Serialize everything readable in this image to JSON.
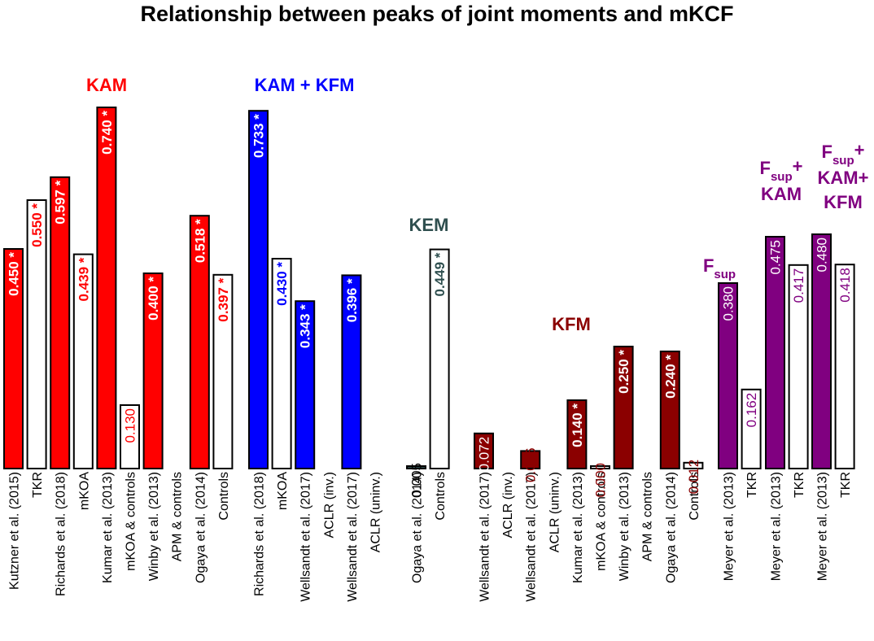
{
  "chart_data": {
    "type": "bar",
    "title": "Relationship between peaks of joint moments and mKCF",
    "ylim": [
      0,
      0.8
    ],
    "groups": [
      {
        "label": "KAM",
        "color": "#ff0000",
        "bars": [
          {
            "category": "Kutzner et al. (2015)",
            "value": 0.45,
            "label": "0.450 *",
            "filled": true
          },
          {
            "category": "TKR",
            "value": 0.55,
            "label": "0.550 *",
            "filled": false
          },
          {
            "category": "Richards et al. (2018)",
            "value": 0.597,
            "label": "0.597 *",
            "filled": true
          },
          {
            "category": "mKOA",
            "value": 0.439,
            "label": "0.439 *",
            "filled": false
          },
          {
            "category": "Kumar et al. (2013)",
            "value": 0.74,
            "label": "0.740 *",
            "filled": true
          },
          {
            "category": "mKOA & controls",
            "value": 0.13,
            "label": "0.130",
            "filled": false
          },
          {
            "category": "Winby et al. (2013)",
            "value": 0.4,
            "label": "0.400 *",
            "filled": true
          },
          {
            "category": "APM & controls",
            "value": null,
            "label": "",
            "filled": false
          },
          {
            "category": "Ogaya et al. (2014)",
            "value": 0.518,
            "label": "0.518 *",
            "filled": true
          },
          {
            "category": "Controls",
            "value": 0.397,
            "label": "0.397 *",
            "filled": false
          }
        ]
      },
      {
        "label": "KAM + KFM",
        "color": "#0000ff",
        "bars": [
          {
            "category": "Richards et al. (2018)",
            "value": 0.733,
            "label": "0.733 *",
            "filled": true
          },
          {
            "category": "mKOA",
            "value": 0.43,
            "label": "0.430 *",
            "filled": false
          },
          {
            "category": "Wellsandt et al. (2017)",
            "value": 0.343,
            "label": "0.343 *",
            "filled": true
          },
          {
            "category": "ACLR (inv.)",
            "value": null,
            "label": "",
            "filled": false
          },
          {
            "category": "Wellsandt et al. (2017)",
            "value": 0.396,
            "label": "0.396 *",
            "filled": true
          },
          {
            "category": "ACLR (uninv.)",
            "value": null,
            "label": "",
            "filled": false
          }
        ]
      },
      {
        "label": "KEM",
        "color": "#2f4f4f",
        "bars": [
          {
            "category": "Ogaya et al. (2014)",
            "value": 0.005,
            "label": "0.005",
            "filled": true
          },
          {
            "category": "Controls",
            "value": 0.449,
            "label": "0.449 *",
            "filled": false
          }
        ]
      },
      {
        "label": "KFM",
        "color": "#8b0000",
        "bars": [
          {
            "category": "Wellsandt et al. (2017)",
            "value": 0.072,
            "label": "0.072",
            "filled": true
          },
          {
            "category": "ACLR (inv.)",
            "value": null,
            "label": "",
            "filled": false
          },
          {
            "category": "Wellsandt et al. (2017)",
            "value": 0.036,
            "label": "0.036",
            "filled": true
          },
          {
            "category": "ACLR (uninv.)",
            "value": null,
            "label": "",
            "filled": false
          },
          {
            "category": "Kumar et al. (2013)",
            "value": 0.14,
            "label": "0.140 *",
            "filled": true
          },
          {
            "category": "mKOA & controls",
            "value": 0.0,
            "label": "0.000",
            "filled": false
          },
          {
            "category": "Winby et al. (2013)",
            "value": 0.25,
            "label": "0.250 *",
            "filled": true
          },
          {
            "category": "APM & controls",
            "value": null,
            "label": "",
            "filled": false
          },
          {
            "category": "Ogaya et al. (2014)",
            "value": 0.24,
            "label": "0.240 *",
            "filled": true
          },
          {
            "category": "Controls",
            "value": 0.012,
            "label": "0.012",
            "filled": false
          }
        ]
      },
      {
        "label": "F",
        "label_sub": "sup",
        "color": "#800080",
        "bars": [
          {
            "category": "Meyer et al. (2013)",
            "value": 0.38,
            "label": "0.380",
            "filled": true
          },
          {
            "category": "TKR",
            "value": 0.162,
            "label": "0.162",
            "filled": false
          }
        ]
      },
      {
        "label": "F",
        "label_sub": "sup",
        "label_suffix": "+",
        "label_line2": "KAM",
        "color": "#800080",
        "bars": [
          {
            "category": "Meyer et al. (2013)",
            "value": 0.475,
            "label": "0.475",
            "filled": true
          },
          {
            "category": "TKR",
            "value": 0.417,
            "label": "0.417",
            "filled": false
          }
        ]
      },
      {
        "label": "F",
        "label_sub": "sup",
        "label_suffix": "+",
        "label_line2": "KAM+",
        "label_line3": "KFM",
        "color": "#800080",
        "bars": [
          {
            "category": "Meyer et al. (2013)",
            "value": 0.48,
            "label": "0.480",
            "filled": true
          },
          {
            "category": "TKR",
            "value": 0.418,
            "label": "0.418",
            "filled": false
          }
        ]
      }
    ]
  }
}
